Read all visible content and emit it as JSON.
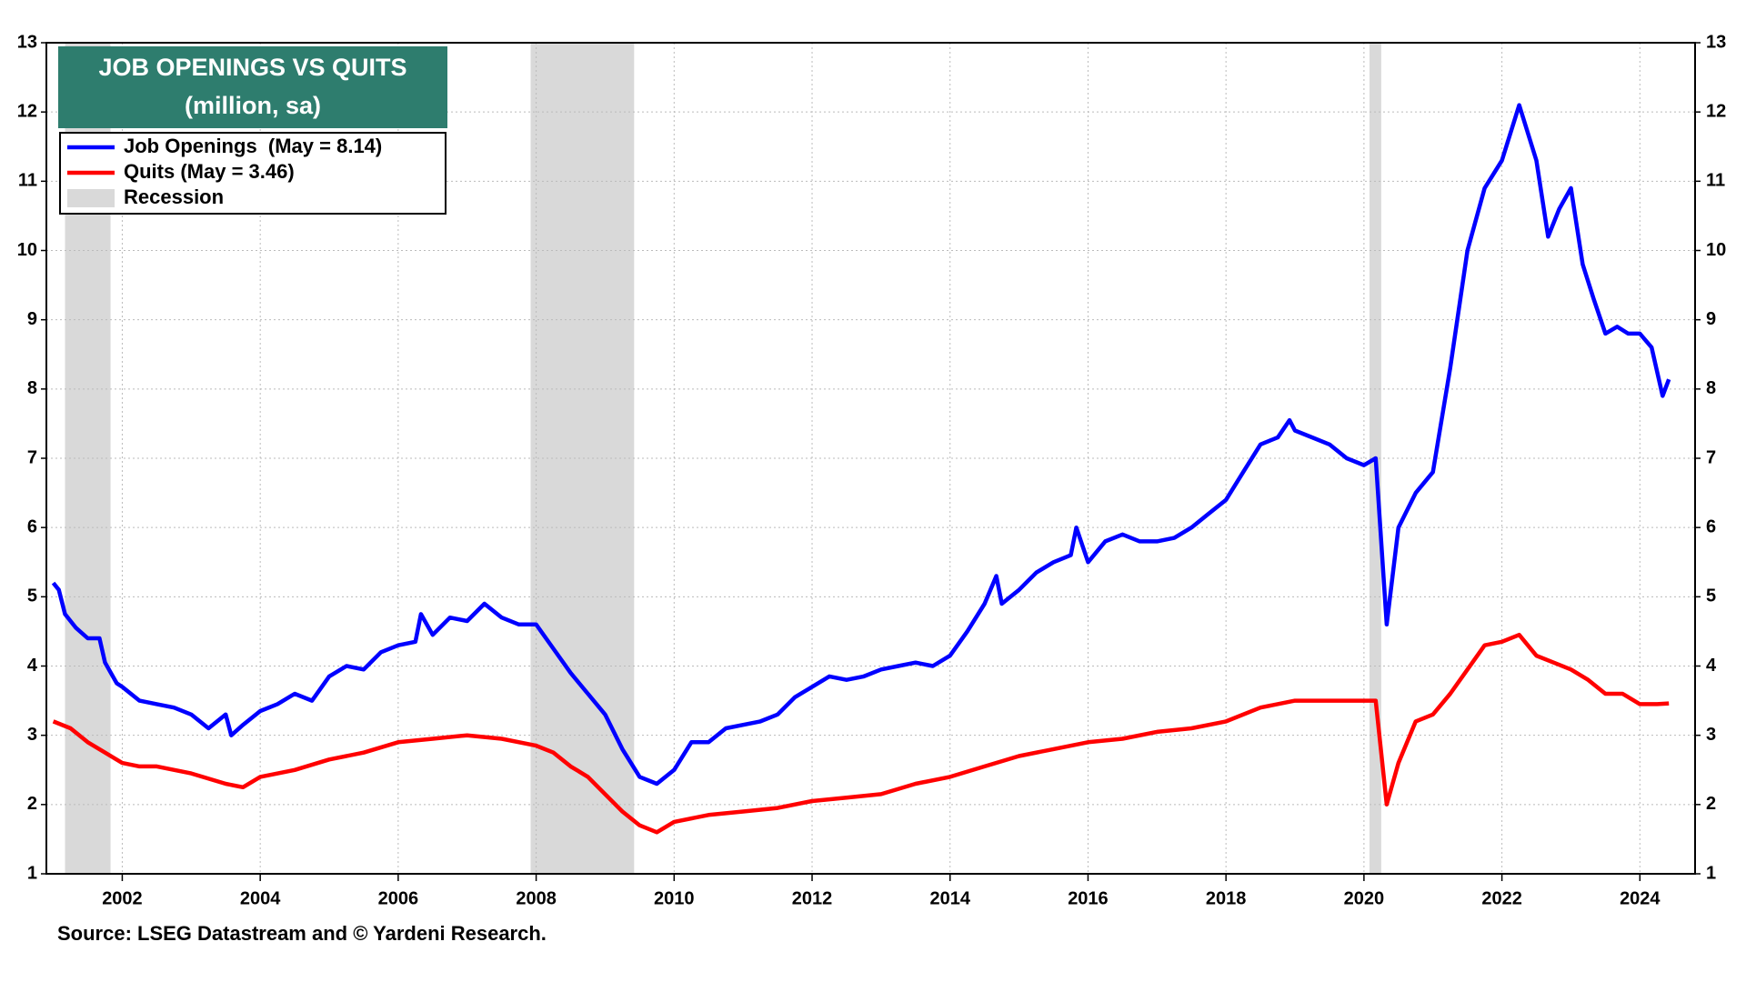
{
  "chart_data": {
    "type": "line",
    "title": "JOB OPENINGS VS QUITS",
    "subtitle": "(million, sa)",
    "source": "Source: LSEG Datastream and © Yardeni Research.",
    "xlim": [
      2000.9,
      2024.8
    ],
    "xticks": [
      2002,
      2004,
      2006,
      2008,
      2010,
      2012,
      2014,
      2016,
      2018,
      2020,
      2022,
      2024
    ],
    "ylim": [
      1,
      13
    ],
    "yticks": [
      1,
      2,
      3,
      4,
      5,
      6,
      7,
      8,
      9,
      10,
      11,
      12,
      13
    ],
    "grid": true,
    "legend": "upper left",
    "recessions": {
      "name": "Recession",
      "color": "#d9d9d9",
      "spans": [
        [
          2001.17,
          2001.83
        ],
        [
          2007.92,
          2009.42
        ],
        [
          2020.08,
          2020.25
        ]
      ]
    },
    "series": [
      {
        "name": "Job Openings  (May = 8.14)",
        "color": "#0000ff",
        "x": [
          2001.0,
          2001.08,
          2001.17,
          2001.33,
          2001.5,
          2001.67,
          2001.75,
          2001.92,
          2002.0,
          2002.25,
          2002.5,
          2002.75,
          2003.0,
          2003.25,
          2003.5,
          2003.58,
          2003.75,
          2004.0,
          2004.25,
          2004.5,
          2004.75,
          2005.0,
          2005.25,
          2005.5,
          2005.75,
          2006.0,
          2006.25,
          2006.33,
          2006.5,
          2006.75,
          2007.0,
          2007.25,
          2007.5,
          2007.75,
          2008.0,
          2008.25,
          2008.5,
          2008.75,
          2009.0,
          2009.25,
          2009.5,
          2009.75,
          2010.0,
          2010.25,
          2010.5,
          2010.75,
          2011.0,
          2011.25,
          2011.5,
          2011.75,
          2012.0,
          2012.25,
          2012.5,
          2012.75,
          2013.0,
          2013.25,
          2013.5,
          2013.75,
          2014.0,
          2014.25,
          2014.5,
          2014.67,
          2014.75,
          2015.0,
          2015.25,
          2015.5,
          2015.75,
          2015.83,
          2016.0,
          2016.25,
          2016.5,
          2016.75,
          2017.0,
          2017.25,
          2017.5,
          2017.75,
          2018.0,
          2018.25,
          2018.5,
          2018.75,
          2018.92,
          2019.0,
          2019.25,
          2019.5,
          2019.75,
          2020.0,
          2020.17,
          2020.33,
          2020.5,
          2020.75,
          2021.0,
          2021.25,
          2021.5,
          2021.75,
          2022.0,
          2022.25,
          2022.5,
          2022.67,
          2022.83,
          2023.0,
          2023.17,
          2023.33,
          2023.5,
          2023.67,
          2023.83,
          2024.0,
          2024.17,
          2024.33,
          2024.42
        ],
        "values": [
          5.2,
          5.1,
          4.75,
          4.55,
          4.4,
          4.4,
          4.05,
          3.75,
          3.7,
          3.5,
          3.45,
          3.4,
          3.3,
          3.1,
          3.3,
          3.0,
          3.15,
          3.35,
          3.45,
          3.6,
          3.5,
          3.85,
          4.0,
          3.95,
          4.2,
          4.3,
          4.35,
          4.75,
          4.45,
          4.7,
          4.65,
          4.9,
          4.7,
          4.6,
          4.6,
          4.25,
          3.9,
          3.6,
          3.3,
          2.8,
          2.4,
          2.3,
          2.5,
          2.9,
          2.9,
          3.1,
          3.15,
          3.2,
          3.3,
          3.55,
          3.7,
          3.85,
          3.8,
          3.85,
          3.95,
          4.0,
          4.05,
          4.0,
          4.15,
          4.5,
          4.9,
          5.3,
          4.9,
          5.1,
          5.35,
          5.5,
          5.6,
          6.0,
          5.5,
          5.8,
          5.9,
          5.8,
          5.8,
          5.85,
          6.0,
          6.2,
          6.4,
          6.8,
          7.2,
          7.3,
          7.55,
          7.4,
          7.3,
          7.2,
          7.0,
          6.9,
          7.0,
          4.6,
          6.0,
          6.5,
          6.8,
          8.3,
          10.0,
          10.9,
          11.3,
          12.1,
          11.3,
          10.2,
          10.6,
          10.9,
          9.8,
          9.3,
          8.8,
          8.9,
          8.8,
          8.8,
          8.6,
          7.9,
          8.14
        ]
      },
      {
        "name": "Quits (May = 3.46)",
        "color": "#ff0000",
        "x": [
          2001.0,
          2001.25,
          2001.5,
          2001.75,
          2002.0,
          2002.25,
          2002.5,
          2003.0,
          2003.5,
          2003.75,
          2004.0,
          2004.5,
          2005.0,
          2005.5,
          2006.0,
          2006.5,
          2007.0,
          2007.5,
          2008.0,
          2008.25,
          2008.5,
          2008.75,
          2009.0,
          2009.25,
          2009.5,
          2009.75,
          2010.0,
          2010.5,
          2011.0,
          2011.5,
          2012.0,
          2012.5,
          2013.0,
          2013.5,
          2014.0,
          2014.5,
          2015.0,
          2015.5,
          2016.0,
          2016.5,
          2017.0,
          2017.5,
          2018.0,
          2018.5,
          2019.0,
          2019.5,
          2020.0,
          2020.17,
          2020.33,
          2020.5,
          2020.75,
          2021.0,
          2021.25,
          2021.5,
          2021.75,
          2022.0,
          2022.25,
          2022.5,
          2022.75,
          2023.0,
          2023.25,
          2023.5,
          2023.75,
          2024.0,
          2024.25,
          2024.42
        ],
        "values": [
          3.2,
          3.1,
          2.9,
          2.75,
          2.6,
          2.55,
          2.55,
          2.45,
          2.3,
          2.25,
          2.4,
          2.5,
          2.65,
          2.75,
          2.9,
          2.95,
          3.0,
          2.95,
          2.85,
          2.75,
          2.55,
          2.4,
          2.15,
          1.9,
          1.7,
          1.6,
          1.75,
          1.85,
          1.9,
          1.95,
          2.05,
          2.1,
          2.15,
          2.3,
          2.4,
          2.55,
          2.7,
          2.8,
          2.9,
          2.95,
          3.05,
          3.1,
          3.2,
          3.4,
          3.5,
          3.5,
          3.5,
          3.5,
          2.0,
          2.6,
          3.2,
          3.3,
          3.6,
          3.95,
          4.3,
          4.35,
          4.45,
          4.15,
          4.05,
          3.95,
          3.8,
          3.6,
          3.6,
          3.45,
          3.45,
          3.46
        ]
      }
    ]
  }
}
